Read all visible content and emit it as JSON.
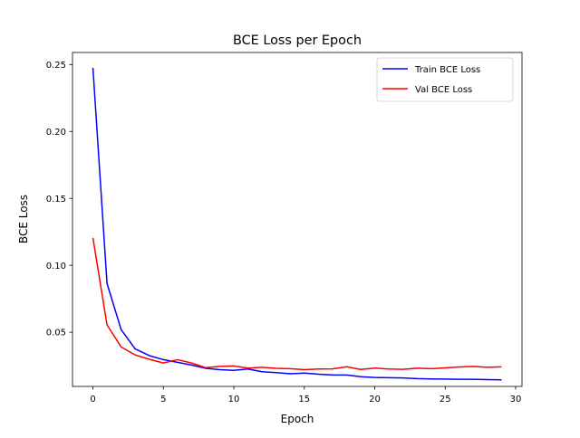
{
  "chart_data": {
    "type": "line",
    "title": "BCE Loss per Epoch",
    "xlabel": "Epoch",
    "ylabel": "BCE Loss",
    "xlim": [
      -1.45,
      30.45
    ],
    "ylim": [
      0.0095,
      0.259
    ],
    "xticks": [
      0,
      5,
      10,
      15,
      20,
      25,
      30
    ],
    "yticks": [
      0.05,
      0.1,
      0.15,
      0.2,
      0.25
    ],
    "ytick_labels": [
      "0.05",
      "0.10",
      "0.15",
      "0.20",
      "0.25"
    ],
    "grid": false,
    "legend_position": "upper right",
    "x": [
      0,
      1,
      2,
      3,
      4,
      5,
      6,
      7,
      8,
      9,
      10,
      11,
      12,
      13,
      14,
      15,
      16,
      17,
      18,
      19,
      20,
      21,
      22,
      23,
      24,
      25,
      26,
      27,
      28,
      29
    ],
    "series": [
      {
        "name": "Train BCE Loss",
        "color": "#0000ff",
        "values": [
          0.2475,
          0.0865,
          0.052,
          0.0375,
          0.0325,
          0.0295,
          0.0275,
          0.0255,
          0.023,
          0.022,
          0.0215,
          0.0225,
          0.0205,
          0.0198,
          0.019,
          0.0195,
          0.0186,
          0.018,
          0.018,
          0.0168,
          0.0162,
          0.016,
          0.0158,
          0.0153,
          0.0151,
          0.015,
          0.0148,
          0.0148,
          0.0146,
          0.0144
        ]
      },
      {
        "name": "Val BCE Loss",
        "color": "#ff0000",
        "values": [
          0.1205,
          0.0555,
          0.039,
          0.033,
          0.0298,
          0.027,
          0.0295,
          0.027,
          0.0235,
          0.0245,
          0.0248,
          0.0232,
          0.0238,
          0.023,
          0.0228,
          0.022,
          0.0225,
          0.0226,
          0.0242,
          0.0222,
          0.0232,
          0.0225,
          0.0223,
          0.0231,
          0.0228,
          0.0234,
          0.024,
          0.0245,
          0.0238,
          0.0241
        ]
      }
    ]
  }
}
